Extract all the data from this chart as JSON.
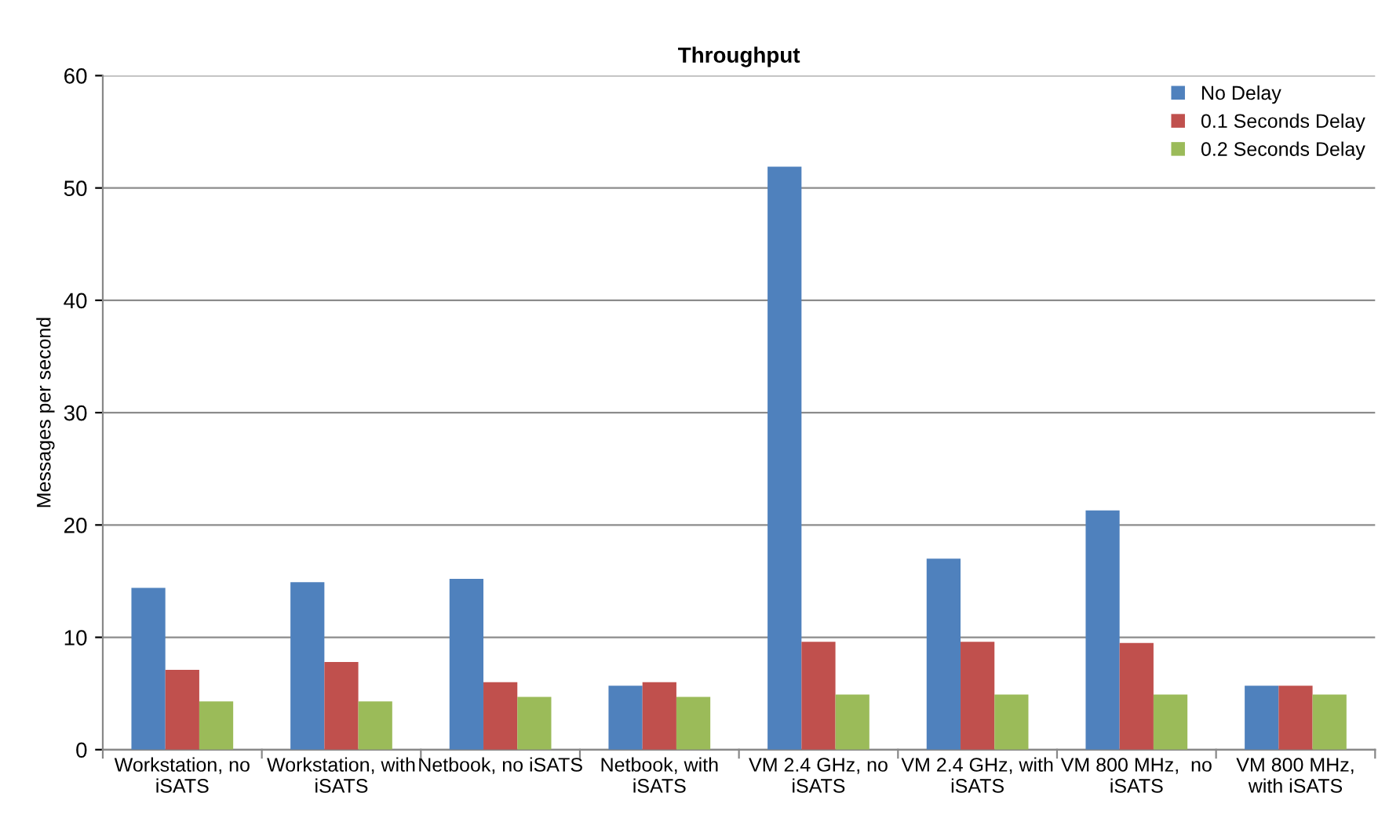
{
  "chart_data": {
    "type": "bar",
    "title": "Throughput",
    "ylabel": "Messages per second",
    "categories": [
      "Workstation, no\niSATS",
      "Workstation, with\niSATS",
      "Netbook, no iSATS",
      "Netbook, with\niSATS",
      "VM 2.4 GHz, no\niSATS",
      "VM 2.4 GHz, with\niSATS",
      "VM 800 MHz,  no\niSATS",
      "VM 800 MHz,\nwith iSATS"
    ],
    "series": [
      {
        "name": "No Delay",
        "color": "#4f81bd",
        "values": [
          14.4,
          14.9,
          15.2,
          5.7,
          51.9,
          17.0,
          21.3,
          5.7
        ]
      },
      {
        "name": "0.1 Seconds Delay",
        "color": "#c0504d",
        "values": [
          7.1,
          7.8,
          6.0,
          6.0,
          9.6,
          9.6,
          9.5,
          5.7
        ]
      },
      {
        "name": "0.2 Seconds Delay",
        "color": "#9bbb59",
        "values": [
          4.3,
          4.3,
          4.7,
          4.7,
          4.9,
          4.9,
          4.9,
          4.9
        ]
      }
    ],
    "ylim": [
      0,
      60
    ],
    "yticks": [
      0,
      10,
      20,
      30,
      40,
      50,
      60
    ],
    "grid": "y",
    "legend": "top right"
  }
}
